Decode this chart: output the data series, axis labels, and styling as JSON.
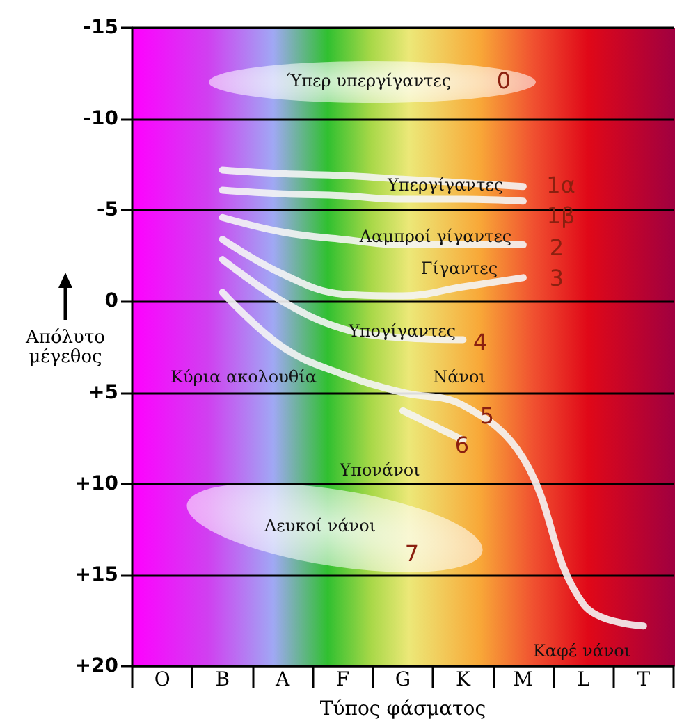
{
  "chart_data": {
    "type": "line",
    "xlabel": "Τύπος φάσματος",
    "ylabel": "Απόλυτο μέγεθος",
    "categories": [
      "O",
      "B",
      "A",
      "F",
      "G",
      "K",
      "M",
      "L",
      "T"
    ],
    "series": [
      {
        "color": "#f4f4f4",
        "values": [
          null,
          -7.2,
          -7.0,
          -6.9,
          -6.7,
          -6.5,
          -6.3,
          null,
          null
        ]
      },
      {
        "color": "#f4f4f4",
        "values": [
          null,
          -6.1,
          -5.9,
          -5.8,
          -5.6,
          -5.6,
          -5.5,
          null,
          null
        ]
      },
      {
        "color": "#f4f4f4",
        "values": [
          null,
          -4.6,
          -3.8,
          -3.4,
          -3.1,
          -3.1,
          -3.1,
          null,
          null
        ]
      },
      {
        "color": "#f4f4f4",
        "values": [
          null,
          -3.4,
          -1.5,
          -0.4,
          -0.3,
          -0.8,
          -1.3,
          null,
          null
        ]
      },
      {
        "color": "#f4f4f4",
        "values": [
          null,
          -2.3,
          0,
          1.5,
          2.0,
          2.1,
          null,
          null,
          null
        ]
      },
      {
        "color": "#f4f4f4",
        "values": [
          null,
          -0.5,
          2.5,
          4.0,
          5.0,
          5.7,
          8.6,
          16.6,
          17.8
        ]
      },
      {
        "color": "#f4f4f4",
        "values": [
          null,
          null,
          null,
          null,
          6.0,
          7.6,
          null,
          null,
          null
        ]
      }
    ],
    "ylim": [
      20,
      -15
    ],
    "yticks": [
      {
        "value": -15,
        "label": "-15"
      },
      {
        "value": -10,
        "label": "-10"
      },
      {
        "value": -5,
        "label": "-5"
      },
      0,
      {
        "value": 5,
        "label": "+5"
      },
      {
        "value": 10,
        "label": "+10"
      },
      {
        "value": 15,
        "label": "+15"
      },
      {
        "value": 20,
        "label": "+20"
      }
    ],
    "grid": "y",
    "marker": "none",
    "line_style": "solid",
    "annotations": [
      "Ύπερ υπεργίγαντες",
      "0",
      "Υπεργίγαντες",
      "1α",
      "1β",
      "Λαμπροί γίγαντες",
      "2",
      "Γίγαντες",
      "3",
      "Υπογίγαντες",
      "4",
      "Κύρια ακολουθία",
      "Νάνοι",
      "5",
      "6",
      "Υπονάνοι",
      "Λευκοί νάνοι",
      "7",
      "Καφέ νάνοι"
    ]
  }
}
